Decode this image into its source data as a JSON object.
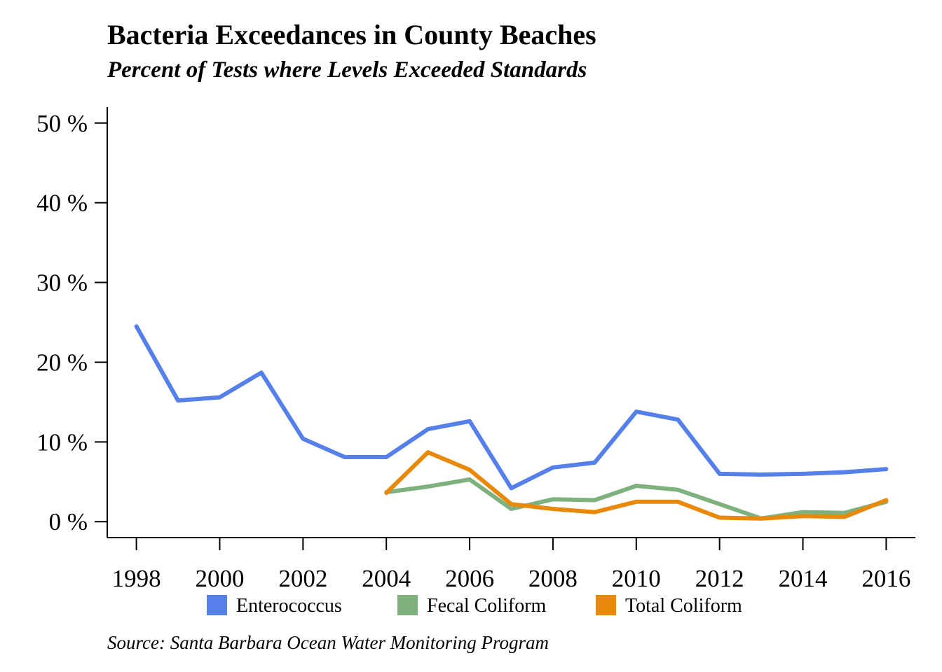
{
  "chart_data": {
    "type": "line",
    "title": "Bacteria Exceedances in County Beaches",
    "subtitle": "Percent of Tests where Levels Exceeded Standards",
    "source": "Source: Santa Barbara Ocean Water Monitoring Program",
    "xlabel": "",
    "ylabel": "",
    "xlim": [
      1997.3,
      2016.7
    ],
    "ylim": [
      -2,
      52
    ],
    "x_ticks": [
      1998,
      2000,
      2002,
      2004,
      2006,
      2008,
      2010,
      2012,
      2014,
      2016
    ],
    "y_ticks": [
      0,
      10,
      20,
      30,
      40,
      50
    ],
    "y_tick_labels": [
      "0 %",
      "10 %",
      "20 %",
      "30 %",
      "40 %",
      "50 %"
    ],
    "grid": false,
    "legend_position": "bottom",
    "series": [
      {
        "name": "Enterococcus",
        "color": "#5580EA",
        "x": [
          1998,
          1999,
          2000,
          2001,
          2002,
          2003,
          2004,
          2005,
          2006,
          2007,
          2008,
          2009,
          2010,
          2011,
          2012,
          2013,
          2014,
          2015,
          2016
        ],
        "values": [
          24.5,
          15.2,
          15.6,
          18.7,
          10.4,
          8.1,
          8.1,
          11.6,
          12.6,
          4.2,
          6.8,
          7.4,
          13.8,
          12.8,
          6.0,
          5.9,
          6.0,
          6.2,
          6.6
        ]
      },
      {
        "name": "Fecal Coliform",
        "color": "#7FB17F",
        "x": [
          2004,
          2005,
          2006,
          2007,
          2008,
          2009,
          2010,
          2011,
          2012,
          2013,
          2014,
          2015,
          2016
        ],
        "values": [
          3.7,
          4.4,
          5.3,
          1.6,
          2.8,
          2.7,
          4.5,
          4.0,
          2.2,
          0.4,
          1.2,
          1.1,
          2.5
        ]
      },
      {
        "name": "Total Coliform",
        "color": "#E8890C",
        "x": [
          2004,
          2005,
          2006,
          2007,
          2008,
          2009,
          2010,
          2011,
          2012,
          2013,
          2014,
          2015,
          2016
        ],
        "values": [
          3.6,
          8.7,
          6.5,
          2.2,
          1.6,
          1.2,
          2.5,
          2.5,
          0.5,
          0.4,
          0.7,
          0.6,
          2.7
        ]
      }
    ]
  }
}
